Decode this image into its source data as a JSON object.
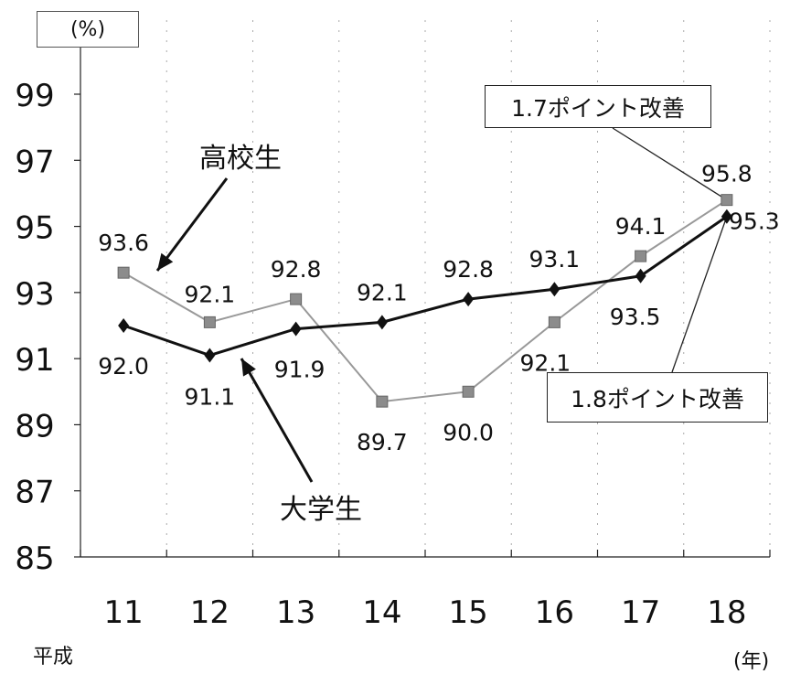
{
  "chart_data": {
    "type": "line",
    "unit_label": "(%)",
    "x_prefix_label": "平成",
    "x_unit_label": "(年)",
    "categories": [
      "11",
      "12",
      "13",
      "14",
      "15",
      "16",
      "17",
      "18"
    ],
    "ylim": [
      85,
      99
    ],
    "yticks": [
      "85",
      "87",
      "89",
      "91",
      "93",
      "95",
      "97",
      "99"
    ],
    "grid": "dotted",
    "series": [
      {
        "name": "高校生",
        "marker": "square",
        "color": "#999999",
        "line_width": "thin",
        "values": [
          93.6,
          92.1,
          92.8,
          89.7,
          90.0,
          92.1,
          94.1,
          95.8
        ],
        "labels": [
          "93.6",
          "92.1",
          "92.8",
          "89.7",
          "90.0",
          "92.1",
          "94.1",
          "95.8"
        ]
      },
      {
        "name": "大学生",
        "marker": "diamond",
        "color": "#111111",
        "line_width": "thick",
        "values": [
          92.0,
          91.1,
          91.9,
          92.1,
          92.8,
          93.1,
          93.5,
          95.3
        ],
        "labels": [
          "92.0",
          "91.1",
          "91.9",
          "92.1",
          "92.8",
          "93.1",
          "93.5",
          "95.3"
        ]
      }
    ],
    "annotations": {
      "high_school_improvement": "1.7ポイント改善",
      "university_improvement": "1.8ポイント改善"
    }
  }
}
